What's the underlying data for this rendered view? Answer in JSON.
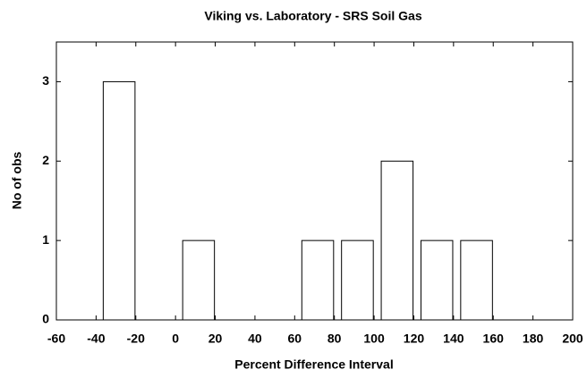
{
  "chart_data": {
    "type": "histogram",
    "title": "Viking vs. Laboratory - SRS Soil Gas",
    "xlabel": "Percent Difference Interval",
    "ylabel": "No of obs",
    "bins": [
      -60,
      -40,
      -20,
      0,
      20,
      40,
      60,
      80,
      100,
      120,
      140,
      160,
      180,
      200
    ],
    "values": [
      0,
      3,
      0,
      1,
      0,
      0,
      1,
      1,
      2,
      1,
      1,
      0,
      0
    ],
    "color": "#ffffff",
    "xlim": [
      -60,
      200
    ],
    "xticks": [
      -60,
      -40,
      -20,
      0,
      20,
      40,
      60,
      80,
      100,
      120,
      140,
      160,
      180,
      200
    ],
    "ylim": [
      0,
      3.5
    ],
    "yticks": [
      0,
      1,
      2,
      3
    ]
  }
}
